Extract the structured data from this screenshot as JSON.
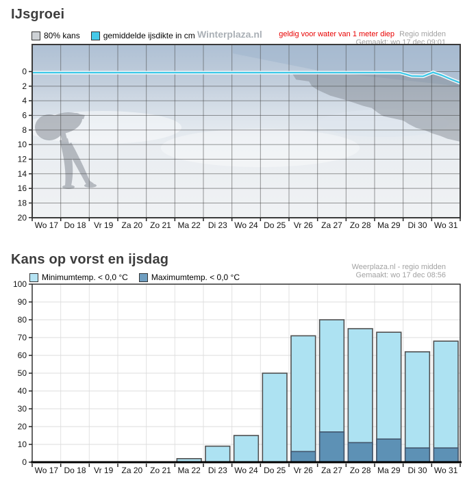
{
  "ice_chart": {
    "title": "IJsgroei",
    "legend": [
      {
        "label": "80% kans",
        "swatch_color": "#cdd1d5"
      },
      {
        "label": "gemiddelde ijsdikte in cm",
        "swatch_color": "#45c9e8"
      }
    ],
    "watermark": "Winterplaza.nl",
    "notice": "geldig voor water van 1 meter diep",
    "region_label": "Regio midden",
    "generated_label": "Gemaakt: wo 17 dec 09:01"
  },
  "frost_chart": {
    "title": "Kans op vorst en ijsdag",
    "legend": [
      {
        "label": "Minimumtemp. < 0,0 °C",
        "swatch_color": "#b5e3f3"
      },
      {
        "label": "Maximumtemp. < 0,0 °C",
        "swatch_color": "#6f9ec0"
      }
    ],
    "source_label": "Weerplaza.nl - regio midden",
    "generated_label": "Gemaakt: wo 17 dec 08:56"
  },
  "chart_data": [
    {
      "id": "ijsgroei",
      "type": "line",
      "title": "IJsgroei",
      "categories": [
        "Wo 17",
        "Do 18",
        "Vr 19",
        "Za 20",
        "Zo 21",
        "Ma 22",
        "Di 23",
        "Wo 24",
        "Do 25",
        "Vr 26",
        "Za 27",
        "Zo 28",
        "Ma 29",
        "Di 30",
        "Wo 31"
      ],
      "y_axis": {
        "unit": "cm",
        "orientation": "down",
        "top_padding_cm": -3.8,
        "min": 0,
        "max": 20,
        "ticks": [
          0,
          2,
          4,
          6,
          8,
          10,
          12,
          14,
          16,
          18,
          20
        ]
      },
      "grid": true,
      "legend_position": "top",
      "series": [
        {
          "name": "gemiddelde ijsdikte in cm",
          "color": "#3fc8e8",
          "halo_color": "#ffffff",
          "points_day_cm": [
            [
              0,
              0.15
            ],
            [
              12.9,
              0.15
            ],
            [
              13.3,
              0.6
            ],
            [
              13.7,
              0.65
            ],
            [
              14.05,
              0.1
            ],
            [
              14.35,
              0.5
            ],
            [
              14.65,
              1.0
            ],
            [
              15,
              1.55
            ]
          ]
        },
        {
          "name": "80% kans",
          "color": "#7d838b",
          "opacity": 0.45,
          "band_upper_day_cm": [
            [
              9.1,
              0.2
            ],
            [
              12.9,
              0.2
            ],
            [
              13.3,
              0.65
            ],
            [
              13.7,
              0.7
            ],
            [
              14.05,
              0.15
            ],
            [
              14.35,
              0.55
            ],
            [
              14.65,
              1.05
            ],
            [
              15,
              1.6
            ]
          ],
          "band_lower_day_cm": [
            [
              9.1,
              0.2
            ],
            [
              9.25,
              1.1
            ],
            [
              9.7,
              1.35
            ],
            [
              9.8,
              2.0
            ],
            [
              10.0,
              2.5
            ],
            [
              10.45,
              3.3
            ],
            [
              10.9,
              3.8
            ],
            [
              11.3,
              4.3
            ],
            [
              11.6,
              4.7
            ],
            [
              11.9,
              5.0
            ],
            [
              12.1,
              5.6
            ],
            [
              12.3,
              6.1
            ],
            [
              13.0,
              6.7
            ],
            [
              13.2,
              7.2
            ],
            [
              13.45,
              7.7
            ],
            [
              13.8,
              8.1
            ],
            [
              14.05,
              8.5
            ],
            [
              14.3,
              8.8
            ],
            [
              14.55,
              9.2
            ],
            [
              15,
              9.6
            ]
          ]
        }
      ]
    },
    {
      "id": "kans-op-vorst-en-ijsdag",
      "type": "bar",
      "title": "Kans op vorst en ijsdag",
      "categories": [
        "Wo 17",
        "Do 18",
        "Vr 19",
        "Za 20",
        "Zo 21",
        "Ma 22",
        "Di 23",
        "Wo 24",
        "Do 25",
        "Vr 26",
        "Za 27",
        "Zo 28",
        "Ma 29",
        "Di 30",
        "Wo 31"
      ],
      "ylim": [
        0,
        100
      ],
      "y_tick_step": 10,
      "grid": true,
      "legend_position": "top",
      "series": [
        {
          "name": "Minimumtemp. < 0,0 °C",
          "color": "#ade2f2",
          "stroke": "#4f4f4f",
          "values": [
            0,
            0,
            0,
            0,
            0,
            2,
            9,
            15,
            50,
            71,
            80,
            75,
            73,
            62,
            68
          ]
        },
        {
          "name": "Maximumtemp. < 0,0 °C",
          "color": "#5d91b5",
          "stroke": "#41546a",
          "values": [
            0,
            0,
            0,
            0,
            0,
            0,
            0,
            0,
            0,
            6,
            17,
            11,
            13,
            8,
            8
          ]
        }
      ]
    }
  ]
}
